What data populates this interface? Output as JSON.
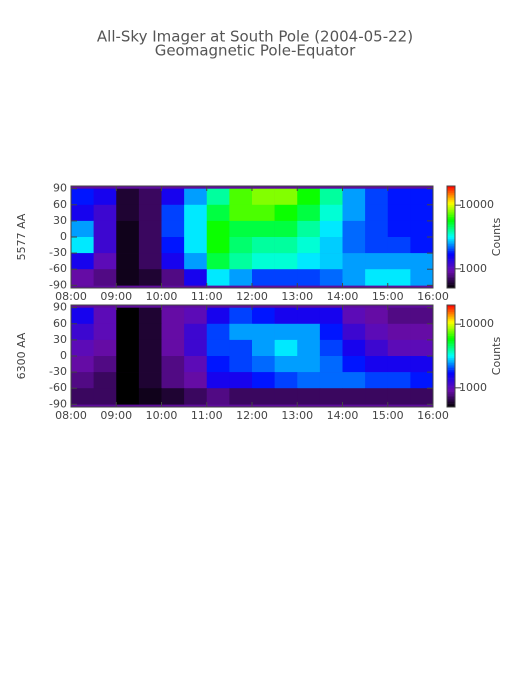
{
  "chart_data": [
    {
      "type": "heatmap",
      "title": "All-Sky Imager at South Pole (2004-05-22)",
      "subtitle": "Geomagnetic Pole-Equator",
      "ylabel": "5577 AA",
      "x": [
        8.25,
        8.75,
        9.25,
        9.75,
        10.25,
        10.75,
        11.25,
        11.75,
        12.25,
        12.75,
        13.25,
        13.75,
        14.25,
        14.75,
        15.25,
        15.75
      ],
      "y": [
        75,
        45,
        15,
        -15,
        -45,
        -75
      ],
      "z": [
        [
          1800,
          1500,
          600,
          700,
          1500,
          2500,
          4000,
          7000,
          8000,
          8000,
          6000,
          4000,
          2500,
          2000,
          1800,
          1800
        ],
        [
          1500,
          1200,
          600,
          700,
          2000,
          3000,
          5000,
          7000,
          7000,
          6000,
          5000,
          3500,
          2500,
          2000,
          1800,
          1800
        ],
        [
          2500,
          1200,
          550,
          700,
          2000,
          3000,
          6000,
          5000,
          5000,
          5000,
          4000,
          3000,
          2200,
          2000,
          1800,
          1800
        ],
        [
          3000,
          1200,
          550,
          700,
          1800,
          3000,
          6000,
          4500,
          4000,
          4000,
          3500,
          2800,
          2200,
          2000,
          2000,
          1800
        ],
        [
          1500,
          1000,
          550,
          700,
          1500,
          2500,
          5000,
          4000,
          3500,
          3500,
          3000,
          2800,
          2500,
          2500,
          2500,
          2500
        ],
        [
          900,
          800,
          550,
          600,
          800,
          1500,
          3000,
          2500,
          2000,
          2000,
          2000,
          2200,
          2500,
          3000,
          3000,
          2500
        ]
      ],
      "xlim": [
        8,
        16
      ],
      "xticks": [
        {
          "value": 8,
          "label": "08:00"
        },
        {
          "value": 9,
          "label": "09:00"
        },
        {
          "value": 10,
          "label": "10:00"
        },
        {
          "value": 11,
          "label": "11:00"
        },
        {
          "value": 12,
          "label": "12:00"
        },
        {
          "value": 13,
          "label": "13:00"
        },
        {
          "value": 14,
          "label": "14:00"
        },
        {
          "value": 15,
          "label": "15:00"
        },
        {
          "value": 16,
          "label": "16:00"
        }
      ],
      "ylim": [
        -95,
        95
      ],
      "yticks": [
        -90,
        -60,
        -30,
        0,
        30,
        60,
        90
      ],
      "zlim": [
        500,
        20000
      ],
      "zticks": [
        1000,
        10000
      ],
      "zlabel": "Counts",
      "zlog": true,
      "colorscale": [
        "#000000",
        "#6a0dad",
        "#0000ff",
        "#00ffff",
        "#00ff00",
        "#ffff00",
        "#ff0000"
      ]
    },
    {
      "type": "heatmap",
      "ylabel": "6300 AA",
      "x": [
        8.25,
        8.75,
        9.25,
        9.75,
        10.25,
        10.75,
        11.25,
        11.75,
        12.25,
        12.75,
        13.25,
        13.75,
        14.25,
        14.75,
        15.25,
        15.75
      ],
      "y": [
        75,
        45,
        15,
        -15,
        -45,
        -75
      ],
      "z": [
        [
          1500,
          1000,
          500,
          600,
          900,
          1000,
          1500,
          2000,
          1800,
          1500,
          1500,
          1500,
          1000,
          900,
          800,
          800
        ],
        [
          1200,
          1000,
          500,
          600,
          900,
          1200,
          2000,
          2500,
          2500,
          2500,
          2500,
          1800,
          1200,
          1000,
          900,
          900
        ],
        [
          1000,
          900,
          500,
          600,
          900,
          1200,
          2000,
          2000,
          2500,
          3000,
          2500,
          2000,
          1500,
          1200,
          1000,
          1000
        ],
        [
          900,
          800,
          500,
          600,
          800,
          1000,
          1800,
          2000,
          2200,
          2500,
          2500,
          2200,
          1800,
          1500,
          1500,
          1500
        ],
        [
          800,
          700,
          500,
          600,
          800,
          900,
          1500,
          1500,
          1800,
          2000,
          2200,
          2200,
          2200,
          2000,
          2000,
          1800
        ],
        [
          700,
          700,
          500,
          550,
          600,
          700,
          800,
          700,
          700,
          700,
          700,
          700,
          700,
          700,
          700,
          700
        ]
      ],
      "xlim": [
        8,
        16
      ],
      "xticks": [
        {
          "value": 8,
          "label": "08:00"
        },
        {
          "value": 9,
          "label": "09:00"
        },
        {
          "value": 10,
          "label": "10:00"
        },
        {
          "value": 11,
          "label": "11:00"
        },
        {
          "value": 12,
          "label": "12:00"
        },
        {
          "value": 13,
          "label": "13:00"
        },
        {
          "value": 14,
          "label": "14:00"
        },
        {
          "value": 15,
          "label": "15:00"
        },
        {
          "value": 16,
          "label": "16:00"
        }
      ],
      "ylim": [
        -95,
        95
      ],
      "yticks": [
        -90,
        -60,
        -30,
        0,
        30,
        60,
        90
      ],
      "zlim": [
        500,
        20000
      ],
      "zticks": [
        1000,
        10000
      ],
      "zlabel": "Counts",
      "zlog": true,
      "colorscale": [
        "#000000",
        "#6a0dad",
        "#0000ff",
        "#00ffff",
        "#00ff00",
        "#ffff00",
        "#ff0000"
      ]
    }
  ]
}
